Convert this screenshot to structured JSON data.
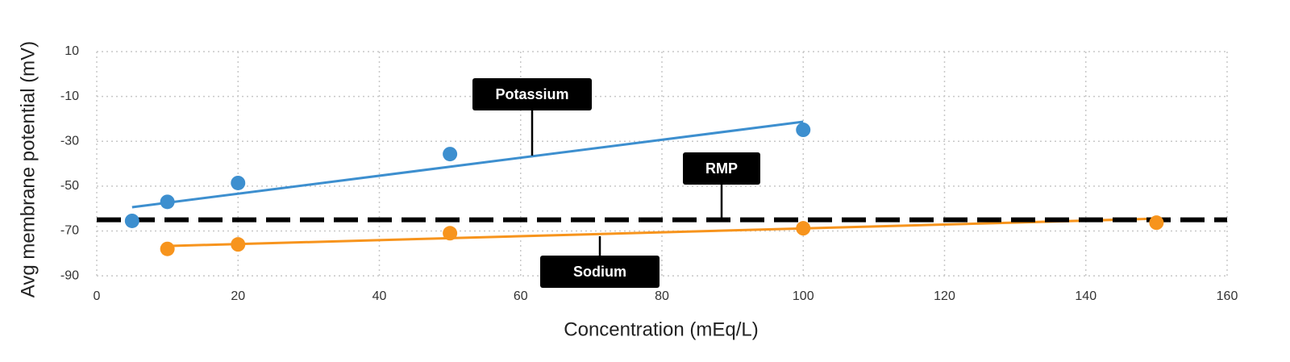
{
  "chart_data": {
    "type": "scatter",
    "x_label": "Concentration (mEq/L)",
    "y_label": "Avg membrane potential (mV)",
    "xlim": [
      0,
      160
    ],
    "xticks": [
      0,
      20,
      40,
      60,
      80,
      100,
      120,
      140,
      160
    ],
    "ylim": [
      -95,
      10
    ],
    "yticks": [
      10,
      -10,
      -30,
      -50,
      -70,
      -90
    ],
    "grid": true,
    "series": [
      {
        "name": "Potassium",
        "color": "#3d8fcf",
        "x": [
          5,
          10,
          20,
          50,
          100
        ],
        "values": [
          -65.5,
          -57,
          -48.6,
          -35.7,
          -24.9
        ],
        "trend_x": [
          5,
          100
        ],
        "trend_y": [
          -59.4,
          -21.3
        ]
      },
      {
        "name": "Sodium",
        "color": "#f7941d",
        "x": [
          10,
          20,
          50,
          100,
          150
        ],
        "values": [
          -78,
          -76,
          -71,
          -68.8,
          -66.3
        ],
        "trend_x": [
          10,
          150
        ],
        "trend_y": [
          -76.7,
          -64.5
        ]
      }
    ],
    "reference_line": {
      "name": "RMP",
      "y": -65,
      "color": "#000000"
    }
  }
}
